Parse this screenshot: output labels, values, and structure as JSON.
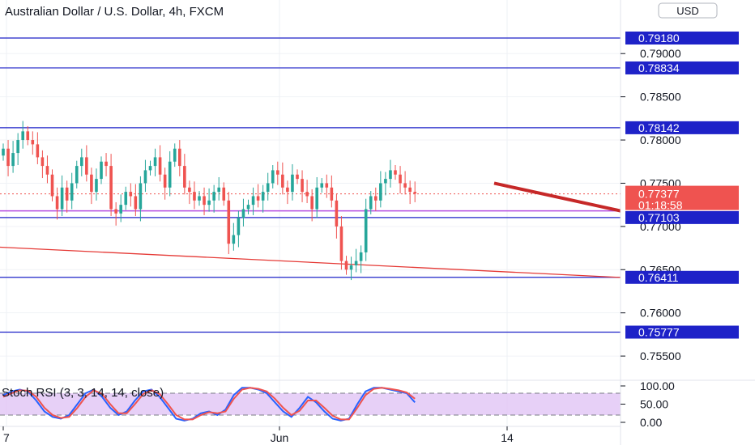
{
  "header": {
    "title": "Australian Dollar / U.S. Dollar, 4h, FXCM",
    "currency_button": "USD"
  },
  "chart_data": {
    "type": "candlestick",
    "symbol": "AUDUSD",
    "interval": "4h",
    "source": "FXCM",
    "ylim": [
      0.7522,
      0.7962
    ],
    "y_ticks": [
      "0.79000",
      "0.78500",
      "0.78000",
      "0.77500",
      "0.77000",
      "0.76500",
      "0.76000",
      "0.75500"
    ],
    "x_ticks": [
      "7",
      "Jun",
      "14"
    ],
    "horizontal_levels": [
      {
        "value": 0.7918,
        "label": "0.79180",
        "color": "#1e22c8"
      },
      {
        "value": 0.78834,
        "label": "0.78834",
        "color": "#1e22c8"
      },
      {
        "value": 0.78142,
        "label": "0.78142",
        "color": "#1e22c8"
      },
      {
        "value": 0.77103,
        "label": "0.77103",
        "color": "#1e22c8"
      },
      {
        "value": 0.76411,
        "label": "0.76411",
        "color": "#1e22c8"
      },
      {
        "value": 0.75777,
        "label": "0.75777",
        "color": "#1e22c8"
      }
    ],
    "purple_level": 0.7718,
    "current_price": {
      "label": "0.77377",
      "countdown": "01:18:58",
      "color": "#ef5350"
    },
    "up_color": "#26a69a",
    "down_color": "#ef5350",
    "candles_close": [
      0.779,
      0.777,
      0.7785,
      0.78,
      0.781,
      0.78,
      0.7795,
      0.778,
      0.777,
      0.776,
      0.7735,
      0.772,
      0.7745,
      0.773,
      0.775,
      0.777,
      0.778,
      0.776,
      0.774,
      0.7755,
      0.7775,
      0.777,
      0.772,
      0.7715,
      0.7725,
      0.774,
      0.7735,
      0.772,
      0.775,
      0.7765,
      0.777,
      0.778,
      0.776,
      0.7745,
      0.7775,
      0.779,
      0.777,
      0.7745,
      0.774,
      0.773,
      0.7735,
      0.7725,
      0.773,
      0.774,
      0.7745,
      0.773,
      0.768,
      0.769,
      0.771,
      0.772,
      0.7725,
      0.7735,
      0.773,
      0.774,
      0.775,
      0.7765,
      0.776,
      0.7745,
      0.774,
      0.776,
      0.7755,
      0.774,
      0.7735,
      0.772,
      0.7745,
      0.775,
      0.7745,
      0.773,
      0.77,
      0.766,
      0.765,
      0.7655,
      0.766,
      0.767,
      0.772,
      0.7735,
      0.773,
      0.775,
      0.7755,
      0.7765,
      0.776,
      0.775,
      0.7745,
      0.774,
      0.7738
    ],
    "red_trendline": {
      "x": [
        "start",
        "right-edge"
      ],
      "y": [
        0.7676,
        0.7641
      ]
    },
    "arrow_trendline": {
      "y": [
        0.775,
        0.7718
      ]
    },
    "stoch_rsi": {
      "title": "Stoch RSI (3, 3, 14, 14, close)",
      "ylim": [
        0,
        100
      ],
      "y_ticks": [
        "100.00",
        "50.00",
        "0.00"
      ],
      "bands": [
        20,
        80
      ],
      "series": [
        {
          "color": "#2962ff",
          "values": [
            75,
            85,
            90,
            85,
            60,
            30,
            15,
            10,
            20,
            50,
            80,
            90,
            70,
            40,
            20,
            30,
            60,
            85,
            90,
            70,
            40,
            10,
            5,
            10,
            25,
            30,
            20,
            35,
            75,
            95,
            95,
            90,
            80,
            55,
            30,
            15,
            40,
            70,
            55,
            30,
            10,
            5,
            10,
            50,
            85,
            95,
            95,
            90,
            85,
            80,
            55
          ]
        },
        {
          "color": "#ef5350",
          "values": [
            70,
            80,
            88,
            87,
            70,
            40,
            20,
            12,
            15,
            40,
            70,
            88,
            78,
            50,
            25,
            25,
            50,
            78,
            88,
            78,
            50,
            20,
            8,
            8,
            20,
            28,
            25,
            30,
            65,
            90,
            95,
            92,
            85,
            65,
            40,
            20,
            32,
            60,
            60,
            40,
            18,
            8,
            8,
            40,
            75,
            92,
            95,
            92,
            88,
            82,
            65
          ]
        }
      ]
    }
  }
}
